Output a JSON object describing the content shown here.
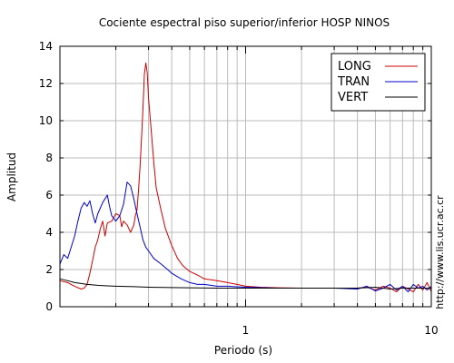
{
  "chart_data": {
    "type": "line",
    "title": "Cociente espectral piso superior/inferior  HOSP NINOS",
    "xlabel": "Periodo (s)",
    "ylabel": "Amplitud",
    "side_note": "http://www.lis.ucr.ac.cr",
    "xscale": "log",
    "xlim": [
      0.1,
      10
    ],
    "ylim": [
      0,
      14
    ],
    "x_ticks": [
      1,
      10
    ],
    "x_tick_labels": [
      "1",
      "10"
    ],
    "y_ticks": [
      0,
      2,
      4,
      6,
      8,
      10,
      12,
      14
    ],
    "y_tick_labels": [
      "0",
      "2",
      "4",
      "6",
      "8",
      "10",
      "12",
      "14"
    ],
    "grid": true,
    "legend_position": "top-right",
    "series": [
      {
        "name": "LONG",
        "color": "#cc0000",
        "points": [
          [
            0.1,
            1.4
          ],
          [
            0.11,
            1.3
          ],
          [
            0.12,
            1.1
          ],
          [
            0.13,
            0.95
          ],
          [
            0.135,
            1.0
          ],
          [
            0.14,
            1.2
          ],
          [
            0.145,
            1.8
          ],
          [
            0.15,
            2.5
          ],
          [
            0.155,
            3.2
          ],
          [
            0.16,
            3.6
          ],
          [
            0.165,
            4.2
          ],
          [
            0.17,
            4.6
          ],
          [
            0.175,
            3.8
          ],
          [
            0.18,
            4.5
          ],
          [
            0.19,
            4.6
          ],
          [
            0.2,
            5.0
          ],
          [
            0.21,
            4.9
          ],
          [
            0.215,
            4.3
          ],
          [
            0.22,
            4.6
          ],
          [
            0.23,
            4.4
          ],
          [
            0.24,
            4.0
          ],
          [
            0.25,
            4.4
          ],
          [
            0.255,
            4.9
          ],
          [
            0.26,
            5.2
          ],
          [
            0.265,
            6.3
          ],
          [
            0.27,
            7.5
          ],
          [
            0.275,
            9.0
          ],
          [
            0.28,
            10.6
          ],
          [
            0.285,
            12.5
          ],
          [
            0.29,
            13.1
          ],
          [
            0.295,
            12.6
          ],
          [
            0.3,
            11.2
          ],
          [
            0.31,
            9.5
          ],
          [
            0.32,
            7.8
          ],
          [
            0.33,
            6.4
          ],
          [
            0.35,
            5.2
          ],
          [
            0.37,
            4.2
          ],
          [
            0.4,
            3.3
          ],
          [
            0.43,
            2.6
          ],
          [
            0.46,
            2.2
          ],
          [
            0.5,
            1.9
          ],
          [
            0.55,
            1.7
          ],
          [
            0.6,
            1.5
          ],
          [
            0.7,
            1.4
          ],
          [
            0.8,
            1.3
          ],
          [
            0.9,
            1.2
          ],
          [
            1.0,
            1.1
          ],
          [
            1.2,
            1.05
          ],
          [
            1.5,
            1.02
          ],
          [
            2.0,
            1.0
          ],
          [
            3.0,
            1.0
          ],
          [
            4.0,
            1.0
          ],
          [
            4.5,
            1.05
          ],
          [
            5.0,
            0.9
          ],
          [
            5.5,
            1.1
          ],
          [
            6.0,
            1.0
          ],
          [
            6.5,
            0.8
          ],
          [
            7.0,
            1.1
          ],
          [
            7.5,
            0.95
          ],
          [
            8.0,
            0.8
          ],
          [
            8.5,
            1.2
          ],
          [
            9.0,
            0.9
          ],
          [
            9.5,
            1.3
          ],
          [
            10.0,
            0.8
          ]
        ]
      },
      {
        "name": "TRAN",
        "color": "#0000cc",
        "points": [
          [
            0.1,
            2.3
          ],
          [
            0.105,
            2.8
          ],
          [
            0.11,
            2.6
          ],
          [
            0.115,
            3.2
          ],
          [
            0.12,
            3.8
          ],
          [
            0.125,
            4.6
          ],
          [
            0.13,
            5.3
          ],
          [
            0.135,
            5.6
          ],
          [
            0.14,
            5.4
          ],
          [
            0.145,
            5.7
          ],
          [
            0.15,
            5.0
          ],
          [
            0.155,
            4.5
          ],
          [
            0.16,
            5.0
          ],
          [
            0.17,
            5.6
          ],
          [
            0.18,
            6.0
          ],
          [
            0.185,
            5.4
          ],
          [
            0.19,
            4.9
          ],
          [
            0.2,
            4.6
          ],
          [
            0.21,
            4.9
          ],
          [
            0.22,
            5.5
          ],
          [
            0.23,
            6.7
          ],
          [
            0.24,
            6.5
          ],
          [
            0.25,
            5.8
          ],
          [
            0.26,
            5.0
          ],
          [
            0.27,
            4.3
          ],
          [
            0.28,
            3.6
          ],
          [
            0.29,
            3.2
          ],
          [
            0.3,
            3.0
          ],
          [
            0.32,
            2.6
          ],
          [
            0.35,
            2.3
          ],
          [
            0.38,
            2.0
          ],
          [
            0.4,
            1.8
          ],
          [
            0.45,
            1.5
          ],
          [
            0.5,
            1.3
          ],
          [
            0.55,
            1.2
          ],
          [
            0.6,
            1.2
          ],
          [
            0.7,
            1.1
          ],
          [
            0.8,
            1.1
          ],
          [
            1.0,
            1.05
          ],
          [
            1.5,
            1.0
          ],
          [
            2.0,
            1.0
          ],
          [
            3.0,
            1.0
          ],
          [
            4.0,
            0.95
          ],
          [
            4.5,
            1.1
          ],
          [
            5.0,
            0.85
          ],
          [
            5.5,
            1.0
          ],
          [
            6.0,
            1.2
          ],
          [
            6.5,
            0.9
          ],
          [
            7.0,
            1.1
          ],
          [
            7.5,
            0.8
          ],
          [
            8.0,
            1.2
          ],
          [
            8.5,
            1.0
          ],
          [
            9.0,
            1.1
          ],
          [
            9.5,
            0.9
          ],
          [
            10.0,
            1.1
          ]
        ]
      },
      {
        "name": "VERT",
        "color": "#000000",
        "points": [
          [
            0.1,
            1.5
          ],
          [
            0.11,
            1.4
          ],
          [
            0.12,
            1.3
          ],
          [
            0.13,
            1.25
          ],
          [
            0.14,
            1.2
          ],
          [
            0.16,
            1.15
          ],
          [
            0.18,
            1.12
          ],
          [
            0.2,
            1.1
          ],
          [
            0.25,
            1.08
          ],
          [
            0.3,
            1.05
          ],
          [
            0.4,
            1.03
          ],
          [
            0.5,
            1.02
          ],
          [
            0.7,
            1.0
          ],
          [
            1.0,
            1.0
          ],
          [
            1.5,
            1.0
          ],
          [
            2.0,
            1.0
          ],
          [
            3.0,
            1.0
          ],
          [
            4.0,
            1.0
          ],
          [
            5.0,
            1.05
          ],
          [
            6.0,
            0.95
          ],
          [
            7.0,
            1.0
          ],
          [
            8.0,
            1.0
          ],
          [
            9.0,
            1.0
          ],
          [
            10.0,
            1.0
          ]
        ]
      }
    ]
  }
}
